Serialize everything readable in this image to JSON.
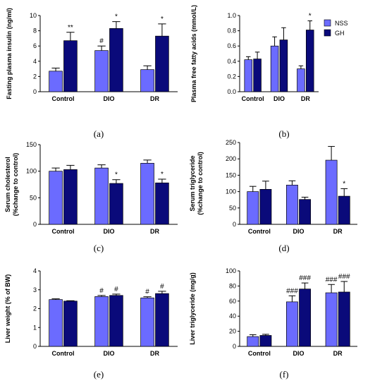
{
  "colors": {
    "NSS": "#6b6bff",
    "GH": "#0a0a7a",
    "axis": "#000000"
  },
  "legend": [
    {
      "name": "NSS",
      "color": "#6b6bff"
    },
    {
      "name": "GH",
      "color": "#0a0a7a"
    }
  ],
  "chart_data": [
    {
      "type": "bar",
      "panel_label": "(a)",
      "ylabel": "Fasting plasma insulin (ng/ml)",
      "categories": [
        "Control",
        "DIO",
        "DR"
      ],
      "ylim": [
        0,
        10
      ],
      "yticks": [
        "0",
        "2",
        "4",
        "6",
        "8",
        "10"
      ],
      "series": [
        {
          "name": "NSS",
          "values": [
            2.7,
            5.4,
            2.9
          ],
          "errors": [
            0.4,
            0.6,
            0.5
          ]
        },
        {
          "name": "GH",
          "values": [
            6.7,
            8.3,
            7.3
          ],
          "errors": [
            1.1,
            0.9,
            1.6
          ]
        }
      ],
      "annotations": [
        {
          "category": 0,
          "series": 1,
          "text": "**"
        },
        {
          "category": 1,
          "series": 0,
          "text": "#"
        },
        {
          "category": 1,
          "series": 1,
          "text": "*"
        },
        {
          "category": 2,
          "series": 1,
          "text": "*"
        }
      ]
    },
    {
      "type": "bar",
      "panel_label": "(b)",
      "ylabel": "Plasma free fatty acids (mmol/L)",
      "categories": [
        "Control",
        "DIO",
        "DR"
      ],
      "ylim": [
        0,
        1.0
      ],
      "yticks": [
        "0.0",
        "0.2",
        "0.4",
        "0.6",
        "0.8",
        "1.0"
      ],
      "series": [
        {
          "name": "NSS",
          "values": [
            0.42,
            0.6,
            0.3
          ],
          "errors": [
            0.04,
            0.12,
            0.04
          ]
        },
        {
          "name": "GH",
          "values": [
            0.43,
            0.68,
            0.81
          ],
          "errors": [
            0.09,
            0.16,
            0.12
          ]
        }
      ],
      "annotations": [
        {
          "category": 2,
          "series": 1,
          "text": "*"
        }
      ]
    },
    {
      "type": "bar",
      "panel_label": "(c)",
      "ylabel": "Serum cholesterol",
      "ylabel2": "(%change to control)",
      "categories": [
        "Control",
        "DIO",
        "DR"
      ],
      "ylim": [
        0,
        150
      ],
      "yticks": [
        "0",
        "50",
        "100",
        "150"
      ],
      "series": [
        {
          "name": "NSS",
          "values": [
            100,
            106,
            115
          ],
          "errors": [
            6,
            6,
            6
          ]
        },
        {
          "name": "GH",
          "values": [
            103,
            77,
            78
          ],
          "errors": [
            8,
            7,
            7
          ]
        }
      ],
      "annotations": [
        {
          "category": 1,
          "series": 1,
          "text": "*"
        },
        {
          "category": 2,
          "series": 1,
          "text": "*"
        }
      ]
    },
    {
      "type": "bar",
      "panel_label": "(d)",
      "ylabel": "Serum triglyceride",
      "ylabel2": "(%change to control)",
      "categories": [
        "Control",
        "DIO",
        "DR"
      ],
      "ylim": [
        0,
        250
      ],
      "yticks": [
        "0",
        "50",
        "100",
        "150",
        "200",
        "250"
      ],
      "series": [
        {
          "name": "NSS",
          "values": [
            100,
            120,
            196
          ],
          "errors": [
            16,
            13,
            42
          ]
        },
        {
          "name": "GH",
          "values": [
            107,
            76,
            86
          ],
          "errors": [
            25,
            7,
            23
          ]
        }
      ],
      "annotations": [
        {
          "category": 2,
          "series": 1,
          "text": "*"
        }
      ]
    },
    {
      "type": "bar",
      "panel_label": "(e)",
      "ylabel": "Liver weight (% of BW)",
      "categories": [
        "Control",
        "DIO",
        "DR"
      ],
      "ylim": [
        0,
        4
      ],
      "yticks": [
        "0",
        "1",
        "2",
        "3",
        "4"
      ],
      "series": [
        {
          "name": "NSS",
          "values": [
            2.48,
            2.64,
            2.57
          ],
          "errors": [
            0.04,
            0.06,
            0.06
          ]
        },
        {
          "name": "GH",
          "values": [
            2.4,
            2.7,
            2.8
          ],
          "errors": [
            0.02,
            0.07,
            0.12
          ]
        }
      ],
      "annotations": [
        {
          "category": 1,
          "series": 0,
          "text": "#"
        },
        {
          "category": 1,
          "series": 1,
          "text": "#"
        },
        {
          "category": 2,
          "series": 0,
          "text": "#"
        },
        {
          "category": 2,
          "series": 1,
          "text": "#"
        }
      ]
    },
    {
      "type": "bar",
      "panel_label": "(f)",
      "ylabel": "Liver triglyceride (mg/g)",
      "categories": [
        "Control",
        "DIO",
        "DR"
      ],
      "ylim": [
        0,
        100
      ],
      "yticks": [
        "0",
        "20",
        "40",
        "60",
        "80",
        "100"
      ],
      "series": [
        {
          "name": "NSS",
          "values": [
            13,
            59,
            71
          ],
          "errors": [
            2.5,
            8,
            11
          ]
        },
        {
          "name": "GH",
          "values": [
            14.5,
            76,
            72
          ],
          "errors": [
            1.5,
            8,
            14
          ]
        }
      ],
      "annotations": [
        {
          "category": 1,
          "series": 0,
          "text": "###"
        },
        {
          "category": 1,
          "series": 1,
          "text": "###"
        },
        {
          "category": 2,
          "series": 0,
          "text": "###"
        },
        {
          "category": 2,
          "series": 1,
          "text": "###"
        }
      ]
    }
  ]
}
